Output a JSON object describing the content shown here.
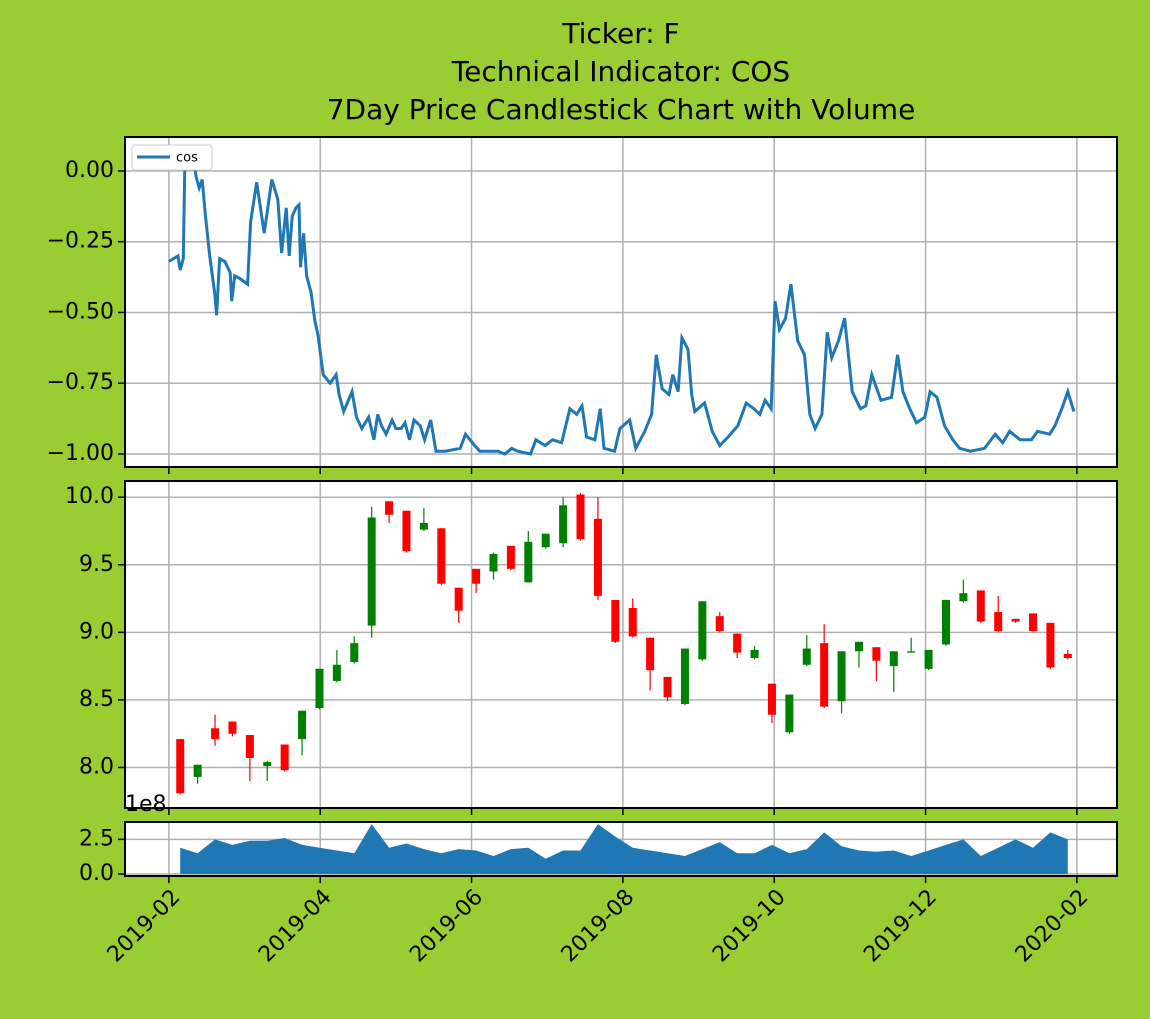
{
  "title": [
    "Ticker: F",
    "Technical Indicator: COS",
    "7Day Price Candlestick Chart with Volume"
  ],
  "chart_data": [
    {
      "type": "line",
      "legend": "upper left",
      "grid": true,
      "xlim": [
        0.42,
        13.53
      ],
      "xticks": [
        1,
        3,
        5,
        7,
        9,
        11,
        13
      ],
      "ylim": [
        -1.046,
        0.12
      ],
      "yticks": [
        {
          "value": -1,
          "label": "−1.00"
        },
        {
          "value": -0.75,
          "label": "−0.75"
        },
        {
          "value": -0.5,
          "label": "−0.50"
        },
        {
          "value": -0.25,
          "label": "−0.25"
        },
        {
          "value": 0,
          "label": "0.00"
        }
      ],
      "x": [
        1.0,
        1.12,
        1.15,
        1.19,
        1.21,
        1.28,
        1.32,
        1.36,
        1.4,
        1.44,
        1.48,
        1.54,
        1.61,
        1.63,
        1.67,
        1.74,
        1.81,
        1.83,
        1.87,
        1.94,
        2.04,
        2.08,
        2.16,
        2.26,
        2.36,
        2.44,
        2.49,
        2.55,
        2.59,
        2.63,
        2.68,
        2.72,
        2.74,
        2.78,
        2.82,
        2.88,
        2.93,
        2.97,
        3.04,
        3.13,
        3.21,
        3.25,
        3.31,
        3.42,
        3.48,
        3.55,
        3.64,
        3.71,
        3.76,
        3.81,
        3.87,
        3.95,
        4.0,
        4.07,
        4.12,
        4.18,
        4.24,
        4.32,
        4.38,
        4.46,
        4.53,
        4.65,
        4.85,
        4.92,
        5.04,
        5.11,
        5.35,
        5.44,
        5.53,
        5.61,
        5.78,
        5.85,
        5.97,
        6.07,
        6.19,
        6.3,
        6.39,
        6.46,
        6.52,
        6.63,
        6.7,
        6.75,
        6.89,
        6.96,
        7.09,
        7.17,
        7.29,
        7.38,
        7.44,
        7.52,
        7.61,
        7.66,
        7.73,
        7.78,
        7.86,
        7.91,
        7.95,
        8.08,
        8.18,
        8.28,
        8.39,
        8.52,
        8.63,
        8.73,
        8.81,
        8.88,
        8.96,
        9.01,
        9.07,
        9.15,
        9.22,
        9.31,
        9.4,
        9.47,
        9.54,
        9.63,
        9.7,
        9.76,
        9.85,
        9.93,
        10.03,
        10.14,
        10.21,
        10.29,
        10.41,
        10.55,
        10.63,
        10.7,
        10.79,
        10.88,
        10.99,
        11.06,
        11.15,
        11.25,
        11.36,
        11.45,
        11.59,
        11.78,
        11.92,
        12.02,
        12.11,
        12.25,
        12.4,
        12.48,
        12.64,
        12.71,
        12.8,
        12.88,
        12.96
      ],
      "series": [
        {
          "name": "cos",
          "color": "#1f77b4",
          "values": [
            -0.32,
            -0.3,
            -0.35,
            -0.31,
            0.02,
            0.04,
            0.05,
            -0.02,
            -0.06,
            -0.03,
            -0.15,
            -0.3,
            -0.44,
            -0.51,
            -0.31,
            -0.32,
            -0.36,
            -0.46,
            -0.37,
            -0.38,
            -0.4,
            -0.18,
            -0.04,
            -0.22,
            -0.03,
            -0.1,
            -0.29,
            -0.13,
            -0.3,
            -0.16,
            -0.13,
            -0.12,
            -0.34,
            -0.22,
            -0.37,
            -0.43,
            -0.53,
            -0.58,
            -0.72,
            -0.75,
            -0.72,
            -0.79,
            -0.85,
            -0.78,
            -0.87,
            -0.91,
            -0.87,
            -0.95,
            -0.86,
            -0.9,
            -0.93,
            -0.88,
            -0.91,
            -0.91,
            -0.89,
            -0.95,
            -0.88,
            -0.9,
            -0.95,
            -0.88,
            -0.99,
            -0.99,
            -0.98,
            -0.93,
            -0.97,
            -0.99,
            -0.99,
            -1.0,
            -0.98,
            -0.99,
            -1.0,
            -0.95,
            -0.97,
            -0.95,
            -0.96,
            -0.84,
            -0.86,
            -0.83,
            -0.94,
            -0.95,
            -0.84,
            -0.98,
            -0.99,
            -0.91,
            -0.88,
            -0.98,
            -0.92,
            -0.86,
            -0.65,
            -0.77,
            -0.79,
            -0.72,
            -0.78,
            -0.59,
            -0.63,
            -0.79,
            -0.85,
            -0.82,
            -0.92,
            -0.97,
            -0.94,
            -0.9,
            -0.82,
            -0.84,
            -0.86,
            -0.81,
            -0.84,
            -0.46,
            -0.56,
            -0.52,
            -0.4,
            -0.6,
            -0.65,
            -0.86,
            -0.91,
            -0.86,
            -0.57,
            -0.66,
            -0.6,
            -0.52,
            -0.78,
            -0.84,
            -0.83,
            -0.72,
            -0.81,
            -0.8,
            -0.65,
            -0.78,
            -0.84,
            -0.89,
            -0.87,
            -0.78,
            -0.8,
            -0.9,
            -0.95,
            -0.98,
            -0.99,
            -0.98,
            -0.93,
            -0.96,
            -0.92,
            -0.95,
            -0.95,
            -0.92,
            -0.93,
            -0.9,
            -0.84,
            -0.78,
            -0.85
          ]
        }
      ]
    },
    {
      "type": "candlestick",
      "grid": true,
      "up_color": "green",
      "down_color": "red",
      "xlim": [
        0.42,
        13.53
      ],
      "xticks": [
        1,
        3,
        5,
        7,
        9,
        11,
        13
      ],
      "ylim": [
        7.7,
        10.12
      ],
      "yticks": [
        {
          "value": 8,
          "label": "8.0"
        },
        8.5,
        {
          "value": 9,
          "label": "9.0"
        },
        9.5,
        {
          "value": 10,
          "label": "10.0"
        }
      ],
      "x": [
        1.15,
        1.38,
        1.61,
        1.84,
        2.07,
        2.3,
        2.53,
        2.76,
        2.99,
        3.22,
        3.45,
        3.68,
        3.91,
        4.14,
        4.37,
        4.6,
        4.83,
        5.06,
        5.29,
        5.52,
        5.75,
        5.98,
        6.21,
        6.44,
        6.67,
        6.9,
        7.13,
        7.36,
        7.59,
        7.82,
        8.05,
        8.28,
        8.51,
        8.74,
        8.97,
        9.2,
        9.43,
        9.66,
        9.89,
        10.12,
        10.35,
        10.58,
        10.81,
        11.04,
        11.27,
        11.5,
        11.73,
        11.96,
        12.19,
        12.42,
        12.65,
        12.88
      ],
      "open": [
        8.21,
        7.93,
        8.29,
        8.34,
        8.24,
        8.01,
        8.17,
        8.21,
        8.44,
        8.64,
        8.78,
        9.05,
        9.97,
        9.9,
        9.76,
        9.77,
        9.33,
        9.47,
        9.45,
        9.64,
        9.37,
        9.63,
        9.66,
        10.02,
        9.84,
        9.24,
        9.18,
        8.96,
        8.67,
        8.47,
        8.8,
        9.12,
        8.99,
        8.81,
        8.62,
        8.26,
        8.76,
        8.92,
        8.49,
        8.86,
        8.89,
        8.75,
        8.85,
        8.73,
        8.91,
        9.23,
        9.31,
        9.15,
        9.1,
        9.14,
        9.07,
        8.84
      ],
      "high": [
        8.21,
        8.02,
        8.39,
        8.34,
        8.24,
        8.05,
        8.17,
        8.42,
        8.73,
        8.87,
        8.97,
        9.93,
        9.97,
        9.9,
        9.92,
        9.77,
        9.33,
        9.47,
        9.59,
        9.64,
        9.75,
        9.73,
        10.0,
        10.03,
        10.0,
        9.24,
        9.25,
        8.96,
        8.67,
        8.88,
        9.23,
        9.15,
        8.99,
        8.9,
        8.62,
        8.54,
        8.98,
        9.06,
        8.86,
        8.93,
        8.89,
        8.86,
        8.96,
        8.87,
        9.24,
        9.39,
        9.31,
        9.27,
        9.1,
        9.14,
        9.07,
        8.87
      ],
      "low": [
        7.8,
        7.88,
        8.16,
        8.23,
        7.9,
        7.9,
        7.97,
        8.09,
        8.43,
        8.63,
        8.77,
        8.96,
        9.81,
        9.59,
        9.75,
        9.35,
        9.07,
        9.29,
        9.39,
        9.46,
        9.37,
        9.62,
        9.63,
        9.68,
        9.24,
        8.92,
        8.96,
        8.57,
        8.49,
        8.46,
        8.79,
        9.0,
        8.81,
        8.8,
        8.33,
        8.25,
        8.75,
        8.44,
        8.4,
        8.74,
        8.64,
        8.56,
        8.85,
        8.72,
        8.9,
        9.22,
        9.07,
        9.0,
        9.07,
        9.0,
        8.73,
        8.8
      ],
      "close": [
        7.81,
        8.02,
        8.21,
        8.25,
        8.07,
        8.04,
        7.98,
        8.42,
        8.73,
        8.76,
        8.92,
        9.85,
        9.87,
        9.6,
        9.81,
        9.36,
        9.16,
        9.36,
        9.58,
        9.47,
        9.67,
        9.73,
        9.94,
        9.69,
        9.27,
        8.93,
        8.97,
        8.72,
        8.52,
        8.88,
        9.23,
        9.01,
        8.85,
        8.87,
        8.39,
        8.54,
        8.88,
        8.45,
        8.86,
        8.93,
        8.79,
        8.86,
        8.86,
        8.87,
        9.24,
        9.29,
        9.08,
        9.01,
        9.08,
        9.01,
        8.74,
        8.81
      ]
    },
    {
      "type": "area",
      "color": "#1f77b4",
      "grid": true,
      "offset_label": "1e8",
      "xlim": [
        0.42,
        13.53
      ],
      "xticks": [
        {
          "value": 1,
          "label": "2019-02"
        },
        {
          "value": 3,
          "label": "2019-04"
        },
        {
          "value": 5,
          "label": "2019-06"
        },
        {
          "value": 7,
          "label": "2019-08"
        },
        {
          "value": 9,
          "label": "2019-10"
        },
        {
          "value": 11,
          "label": "2019-12"
        },
        {
          "value": 13,
          "label": "2020-02"
        }
      ],
      "ylim": [
        -0.14,
        3.75
      ],
      "yticks": [
        {
          "value": 0,
          "label": "0.0"
        },
        2.5
      ],
      "x": [
        1.15,
        1.38,
        1.61,
        1.84,
        2.07,
        2.3,
        2.53,
        2.76,
        2.99,
        3.22,
        3.45,
        3.68,
        3.91,
        4.14,
        4.37,
        4.6,
        4.83,
        5.06,
        5.29,
        5.52,
        5.75,
        5.98,
        6.21,
        6.44,
        6.67,
        6.9,
        7.13,
        7.36,
        7.59,
        7.82,
        8.05,
        8.28,
        8.51,
        8.74,
        8.97,
        9.2,
        9.43,
        9.66,
        9.89,
        10.12,
        10.35,
        10.58,
        10.81,
        11.04,
        11.27,
        11.5,
        11.73,
        11.96,
        12.19,
        12.42,
        12.65,
        12.88
      ],
      "values": [
        1.9,
        1.5,
        2.5,
        2.1,
        2.4,
        2.4,
        2.6,
        2.1,
        1.9,
        1.7,
        1.5,
        3.6,
        1.9,
        2.2,
        1.8,
        1.5,
        1.8,
        1.7,
        1.3,
        1.8,
        1.9,
        1.1,
        1.7,
        1.7,
        3.6,
        2.7,
        1.9,
        1.7,
        1.5,
        1.3,
        1.8,
        2.3,
        1.5,
        1.5,
        2.1,
        1.5,
        1.8,
        3.0,
        2.0,
        1.7,
        1.6,
        1.7,
        1.3,
        1.7,
        2.1,
        2.5,
        1.3,
        1.9,
        2.5,
        1.9,
        3.0,
        2.5
      ]
    }
  ]
}
